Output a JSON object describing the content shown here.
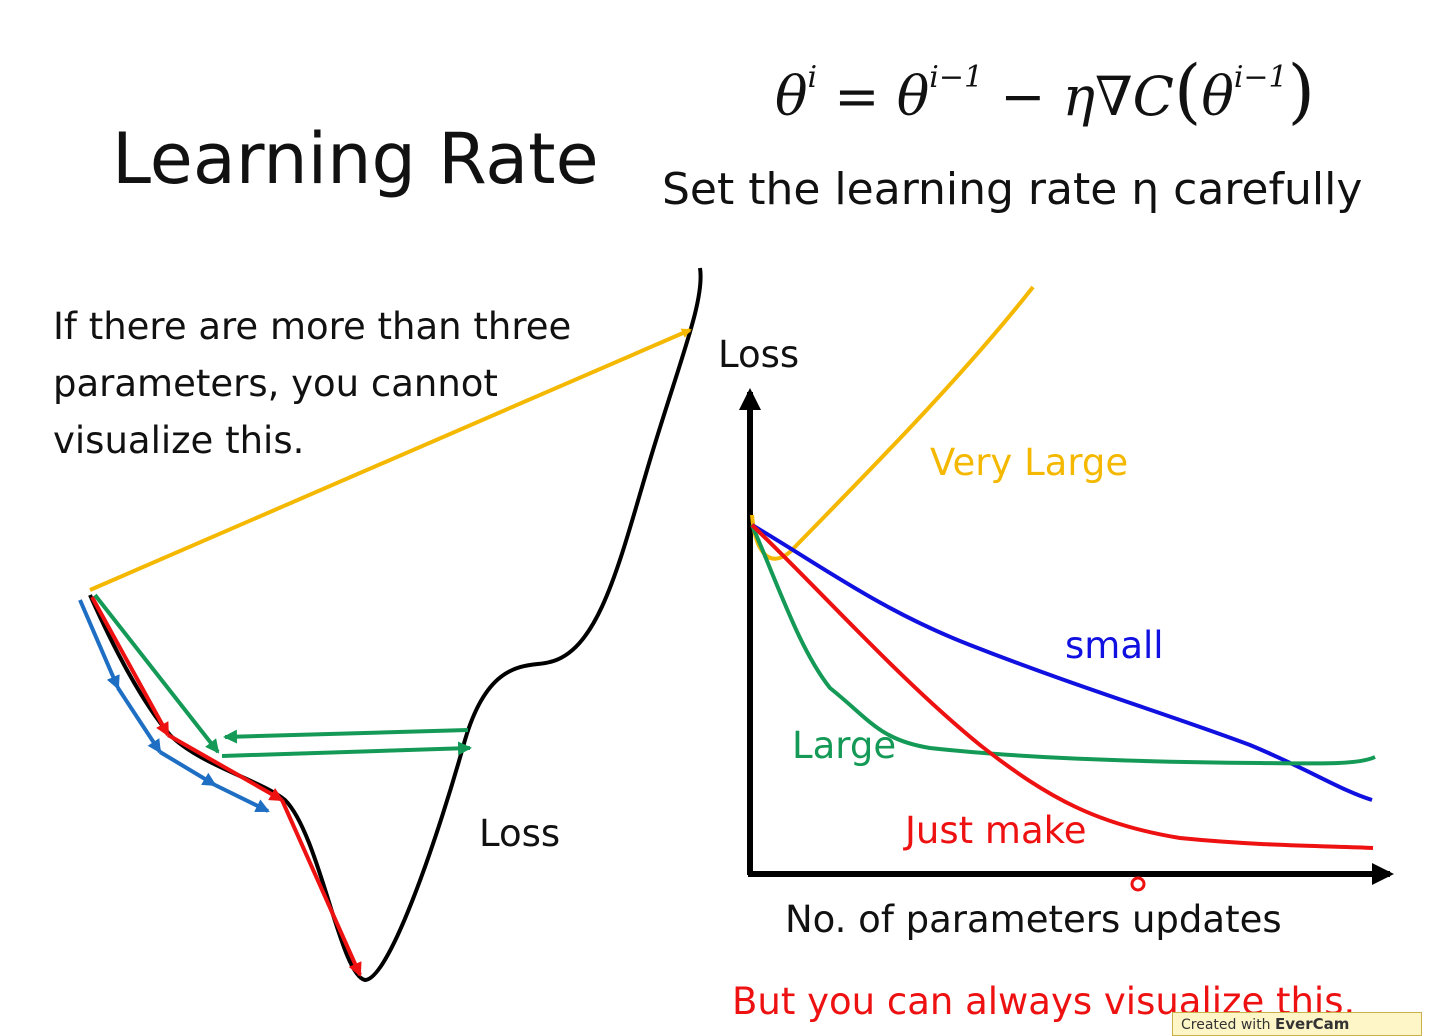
{
  "slide": {
    "title": "Learning Rate",
    "subtitle": "Set the learning rate η carefully",
    "note": "If there are more than three parameters, you cannot visualize this.",
    "left_loss_label": "Loss",
    "bottom_note": "But you can always visualize this.",
    "watermark_prefix": "Created with",
    "watermark_brand": "EverCam"
  },
  "formula": {
    "lhs": "θ",
    "lhs_sup": "i",
    "eq": " = ",
    "theta": "θ",
    "sup_prev": "i−1",
    "minus": " − ",
    "eta_grad": "η∇C",
    "lparen": "(",
    "inner": "θ",
    "inner_sup": "i−1",
    "rparen": ")"
  },
  "colors": {
    "very_large": "#f5b800",
    "small": "#1010e0",
    "large": "#149a56",
    "just_make": "#ee1111",
    "blue_steps": "#1e6fc4",
    "axis": "#000000"
  },
  "chart_data": {
    "type": "line",
    "title": "",
    "ylabel": "Loss",
    "xlabel": "No. of parameters updates",
    "grid": false,
    "series": [
      {
        "name": "Very Large",
        "color": "#f5b800"
      },
      {
        "name": "small",
        "color": "#1010e0"
      },
      {
        "name": "Large",
        "color": "#149a56"
      },
      {
        "name": "Just make",
        "color": "#ee1111"
      }
    ]
  }
}
